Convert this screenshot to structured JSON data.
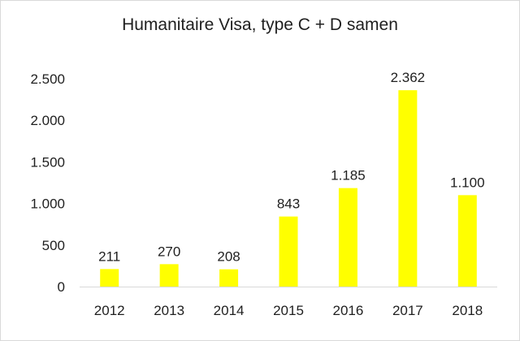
{
  "chart_data": {
    "type": "bar",
    "title": "Humanitaire Visa, type C + D samen",
    "xlabel": "",
    "ylabel": "",
    "categories": [
      "2012",
      "2013",
      "2014",
      "2015",
      "2016",
      "2017",
      "2018"
    ],
    "values": [
      211,
      270,
      208,
      843,
      1185,
      2362,
      1100
    ],
    "value_labels": [
      "211",
      "270",
      "208",
      "843",
      "1.185",
      "2.362",
      "1.100"
    ],
    "ylim": [
      0,
      2500
    ],
    "yticks": [
      0,
      500,
      1000,
      1500,
      2000,
      2500
    ],
    "ytick_labels": [
      "0",
      "500",
      "1.000",
      "1.500",
      "2.000",
      "2.500"
    ],
    "bar_color": "#ffff00",
    "grid": false,
    "legend": "none"
  }
}
